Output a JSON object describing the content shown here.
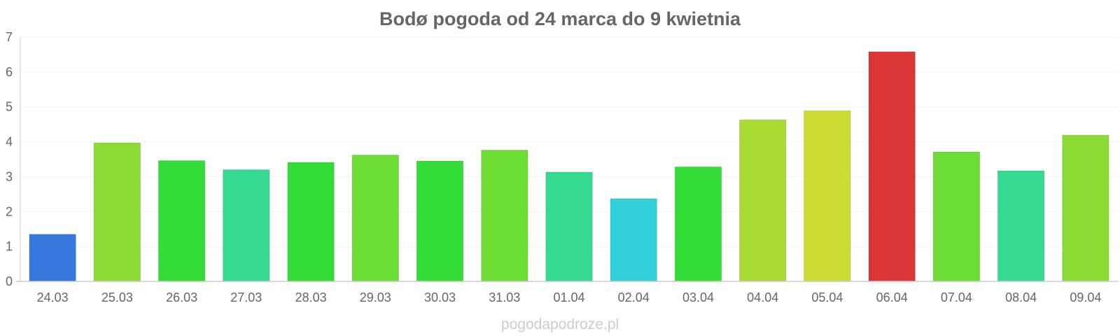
{
  "chart_data": {
    "type": "bar",
    "title": "Bodø pogoda od 24 marca do 9 kwietnia",
    "xlabel": "",
    "ylabel": "",
    "ylim": [
      0,
      7
    ],
    "yticks": [
      0,
      1,
      2,
      3,
      4,
      5,
      6,
      7
    ],
    "grid": true,
    "categories": [
      "24.03",
      "25.03",
      "26.03",
      "27.03",
      "28.03",
      "29.03",
      "30.03",
      "31.03",
      "01.04",
      "02.04",
      "03.04",
      "04.04",
      "05.04",
      "06.04",
      "07.04",
      "08.04",
      "09.04"
    ],
    "values": [
      1.35,
      3.97,
      3.46,
      3.2,
      3.41,
      3.62,
      3.45,
      3.76,
      3.13,
      2.37,
      3.28,
      4.63,
      4.89,
      6.58,
      3.71,
      3.17,
      4.19
    ],
    "colors": [
      "#3577dc",
      "#8adb34",
      "#33dc37",
      "#33da8f",
      "#33dc37",
      "#6ddc34",
      "#33dc37",
      "#6ddc34",
      "#33da8f",
      "#33cfda",
      "#33dc37",
      "#aadb32",
      "#ccdc33",
      "#dc3535",
      "#6ddc34",
      "#33da8f",
      "#8adb34"
    ]
  },
  "watermark": "pogodapodroze.pl"
}
